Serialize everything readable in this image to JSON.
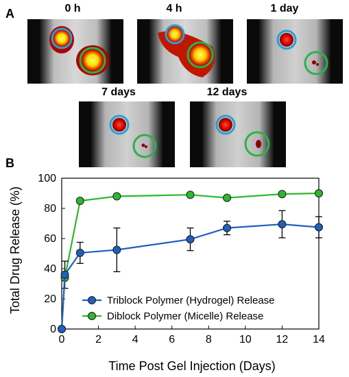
{
  "panel_a": {
    "letter": "A",
    "images": [
      {
        "label": "0 h"
      },
      {
        "label": "4 h"
      },
      {
        "label": "1 day"
      },
      {
        "label": "7 days"
      },
      {
        "label": "12 days"
      }
    ]
  },
  "panel_b": {
    "letter": "B"
  },
  "colors": {
    "triblock": "#1f5fbf",
    "diblock": "#2db82d",
    "blue_circle": "#2a9fd6",
    "green_circle": "#28b34a"
  },
  "chart_data": {
    "type": "line",
    "xlabel": "Time Post Gel Injection (Days)",
    "ylabel": "Total Drug Release (%)",
    "xlim": [
      0,
      14
    ],
    "ylim": [
      0,
      100
    ],
    "xticks": [
      "0",
      "2",
      "4",
      "6",
      "8",
      "10",
      "12",
      "14"
    ],
    "yticks": [
      "0",
      "20",
      "40",
      "60",
      "80",
      "100"
    ],
    "legend_position": "bottom-right",
    "series": [
      {
        "name": "Triblock Polymer (Hydrogel) Release",
        "x": [
          0,
          0.17,
          1,
          3,
          7,
          9,
          12,
          14
        ],
        "y": [
          0,
          36,
          50.5,
          52.5,
          59.5,
          67,
          69.5,
          67.5
        ],
        "err": [
          0,
          9,
          7,
          14.5,
          7.5,
          4.5,
          9,
          7
        ]
      },
      {
        "name": "Diblock Polymer (Micelle) Release",
        "x": [
          0,
          0.17,
          1,
          3,
          7,
          9,
          12,
          14
        ],
        "y": [
          0,
          34,
          85,
          88,
          89,
          87,
          89.5,
          90
        ]
      }
    ]
  }
}
